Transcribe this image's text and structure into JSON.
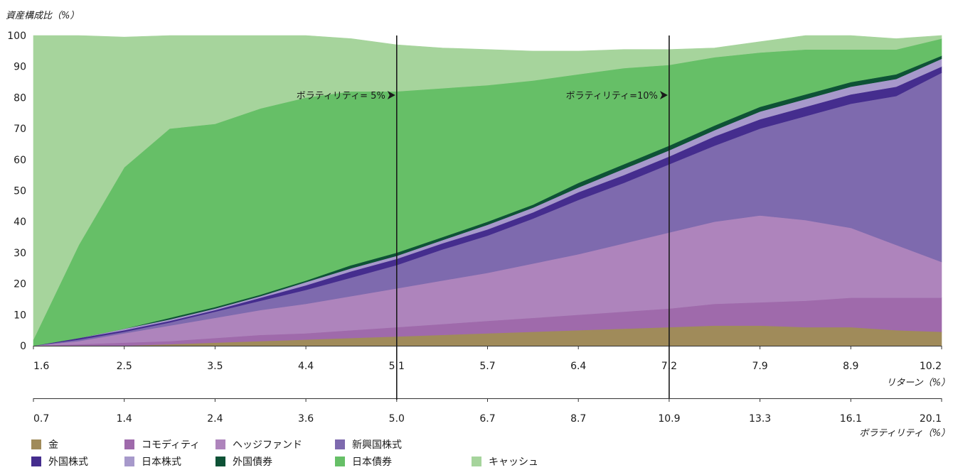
{
  "chart_data": {
    "type": "area",
    "stacked": true,
    "ylabel": "資産構成比（%）",
    "xlabel": "リターン（%）",
    "x2label": "ボラティリティ（%）",
    "ylim": [
      0,
      100
    ],
    "yticks": [
      0,
      10,
      20,
      30,
      40,
      50,
      60,
      70,
      80,
      90,
      100
    ],
    "x_ticks_return": [
      "1.6",
      "2.5",
      "3.5",
      "4.4",
      "5.1",
      "5.7",
      "6.4",
      "7.2",
      "7.9",
      "8.9",
      "10.2"
    ],
    "x_ticks_volatility": [
      "0.7",
      "1.4",
      "2.4",
      "3.6",
      "5.0",
      "6.7",
      "8.7",
      "10.9",
      "13.3",
      "16.1",
      "20.1"
    ],
    "x": [
      0,
      0.5,
      1,
      1.5,
      2,
      2.5,
      3,
      3.5,
      4,
      4.5,
      5,
      5.5,
      6,
      6.5,
      7,
      7.5,
      8,
      8.5,
      9,
      9.5,
      10
    ],
    "series": [
      {
        "name": "金",
        "color": "#a08b5a",
        "values": [
          0,
          0,
          0,
          0.5,
          1,
          1.5,
          2,
          2.5,
          3,
          3.5,
          4,
          4.5,
          5,
          5.5,
          6,
          6.5,
          6.5,
          6,
          6,
          5,
          4.5
        ]
      },
      {
        "name": "コモディティ",
        "color": "#9f6aab",
        "values": [
          0,
          0.5,
          1,
          1,
          1.5,
          2,
          2,
          2.5,
          3,
          3.5,
          4,
          4.5,
          5,
          5.5,
          6,
          7,
          7.5,
          8.5,
          9.5,
          10.5,
          11
        ]
      },
      {
        "name": "ヘッジファンド",
        "color": "#ae84bc",
        "values": [
          0,
          1,
          3,
          5,
          6.5,
          8,
          9.5,
          11,
          12.5,
          14,
          15.5,
          17.5,
          19.5,
          22,
          24.5,
          26.5,
          28,
          26,
          22.5,
          17,
          11.5
        ]
      },
      {
        "name": "新興国株式",
        "color": "#7e6aae",
        "values": [
          0,
          0.5,
          0.5,
          1,
          2,
          3,
          4.5,
          6,
          7.5,
          10,
          12,
          14.5,
          17.5,
          19.5,
          22,
          24.5,
          28,
          33.5,
          40,
          48,
          61
        ]
      },
      {
        "name": "外国株式",
        "color": "#452d8e",
        "values": [
          0,
          0.5,
          0.5,
          0.5,
          0.5,
          1,
          1.5,
          2,
          2,
          2,
          2,
          2,
          2.5,
          2.5,
          2.5,
          3,
          3,
          3,
          3,
          3,
          2
        ]
      },
      {
        "name": "日本株式",
        "color": "#a799cb",
        "values": [
          0,
          0,
          0.5,
          0.5,
          0.5,
          0.5,
          1,
          1,
          1,
          1,
          1.5,
          1.5,
          1.5,
          2,
          2,
          2,
          2.5,
          2.5,
          2.5,
          2.5,
          2.5
        ]
      },
      {
        "name": "外国債券",
        "color": "#0e5236",
        "values": [
          0,
          0,
          0,
          0.5,
          0.5,
          0.5,
          0.5,
          1,
          1,
          1,
          1,
          1,
          1.5,
          1.5,
          1.5,
          1.5,
          1.5,
          1.5,
          1.5,
          1.5,
          1
        ]
      },
      {
        "name": "日本債券",
        "color": "#66bf67",
        "values": [
          2,
          30,
          52,
          61,
          59,
          60,
          59,
          56,
          52,
          48,
          44,
          40,
          35,
          31,
          26,
          22,
          17.5,
          14.5,
          10.5,
          8,
          5.5
        ]
      },
      {
        "name": "キャッシュ",
        "color": "#a6d49c",
        "values": [
          98,
          67.5,
          42,
          30,
          28.5,
          23.5,
          20,
          17,
          15,
          13,
          11.5,
          9.5,
          7.5,
          6,
          5,
          3,
          3.5,
          4.5,
          4.5,
          3.5,
          1
        ]
      }
    ],
    "annotations": [
      {
        "text": "ボラティリティ= 5%",
        "x": 4
      },
      {
        "text": "ボラティリティ=10%",
        "x": 7
      }
    ],
    "legend_position": "bottom",
    "grid": false
  }
}
